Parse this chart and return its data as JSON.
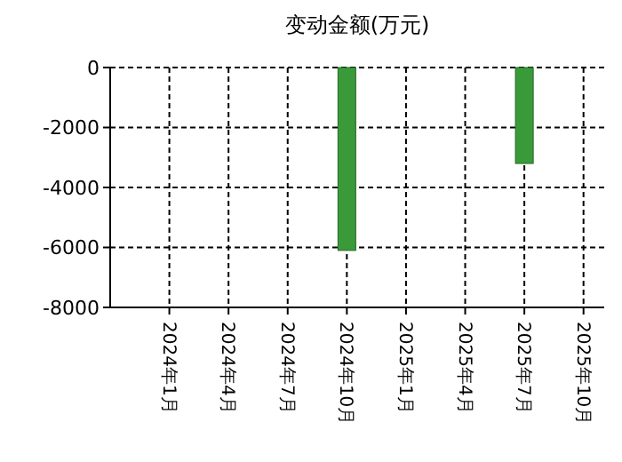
{
  "chart_data": {
    "type": "bar",
    "title": "变动金额(万元)",
    "categories": [
      "2024年1月",
      "2024年4月",
      "2024年7月",
      "2024年10月",
      "2025年1月",
      "2025年4月",
      "2025年7月",
      "2025年10月"
    ],
    "values": [
      null,
      null,
      null,
      -6100,
      null,
      null,
      -3200,
      null
    ],
    "color": "#3a9a3a",
    "ylim": [
      -8000,
      0
    ],
    "yticks": [
      0,
      -2000,
      -4000,
      -6000,
      -8000
    ],
    "grid": true
  }
}
